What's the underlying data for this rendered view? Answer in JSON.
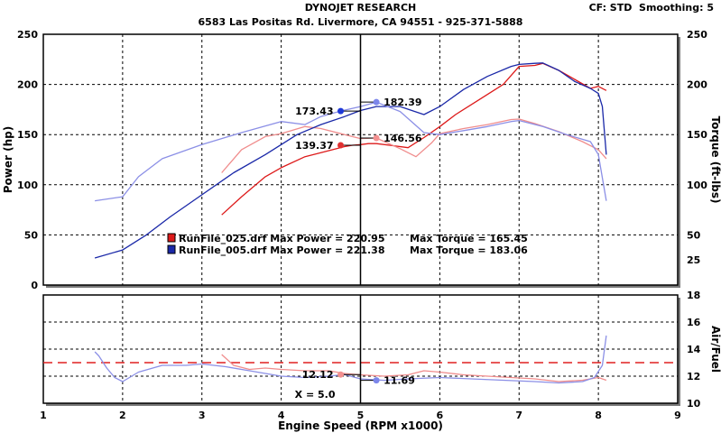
{
  "header": {
    "title": "DYNOJET RESEARCH",
    "address": "6583 Las Positas Rd. Livermore, CA 94551 - 925-371-5888",
    "cf_label": "CF: STD",
    "smoothing_label": "Smoothing: 5"
  },
  "colors": {
    "red_dark": "#dd1a1a",
    "red_light": "#f08c8c",
    "blue_dark": "#1a28a8",
    "blue_light": "#8b8fe6",
    "marker_red": "#e03030",
    "marker_red_light": "#f39090",
    "marker_blue": "#1f3ad8",
    "marker_blue_light": "#7c86ea",
    "afr_target": "#e02020"
  },
  "chart_data": [
    {
      "type": "line",
      "name": "power-torque",
      "xlabel": "Engine Speed (RPM x1000)",
      "ylabel": "Power (hp)",
      "ylabel_right": "Torque (ft-lbs)",
      "xlim": [
        1,
        9
      ],
      "ylim": [
        0,
        250
      ],
      "ylim_right": [
        0,
        250
      ],
      "x_ticks": [
        "1",
        "2",
        "3",
        "4",
        "5",
        "6",
        "7",
        "8",
        "9"
      ],
      "y_ticks": [
        "0",
        "50",
        "100",
        "150",
        "200",
        "250"
      ],
      "y_ticks_right": [
        "25",
        "50",
        "100",
        "150",
        "200",
        "250"
      ],
      "grid": true,
      "cursor_x": 5.0,
      "legend": [
        {
          "text": "RunFile_025.drf Max Power = 220.95",
          "torque_text": "Max Torque = 165.45",
          "color_key": "red_dark"
        },
        {
          "text": "RunFile_005.drf Max Power = 221.38",
          "torque_text": "Max Torque = 183.06",
          "color_key": "blue_dark"
        }
      ],
      "series": [
        {
          "role": "power",
          "color_key": "red_dark",
          "x": [
            3.25,
            3.5,
            3.8,
            4.0,
            4.3,
            4.5,
            4.7,
            4.8,
            4.9,
            5.0,
            5.1,
            5.2,
            5.4,
            5.6,
            5.8,
            6.0,
            6.2,
            6.5,
            6.8,
            7.0,
            7.2,
            7.3,
            7.5,
            7.7,
            7.9,
            8.0,
            8.1
          ],
          "y": [
            70,
            88,
            108,
            117,
            128,
            132,
            136,
            138,
            139.37,
            140,
            141,
            141,
            139,
            137,
            147,
            158,
            170,
            185,
            200,
            218,
            219,
            220.95,
            214,
            205,
            196,
            198,
            194
          ]
        },
        {
          "role": "torque",
          "color_key": "red_light",
          "x": [
            3.25,
            3.5,
            3.8,
            4.0,
            4.3,
            4.5,
            4.8,
            5.0,
            5.2,
            5.5,
            5.7,
            5.9,
            6.0,
            6.3,
            6.6,
            6.9,
            7.0,
            7.2,
            7.5,
            7.8,
            8.0,
            8.1
          ],
          "y": [
            112,
            135,
            148,
            151,
            158,
            156,
            150,
            146,
            146.56,
            136,
            128,
            142,
            151,
            156,
            160,
            165,
            165.45,
            161,
            153,
            143,
            135,
            126
          ]
        },
        {
          "role": "power",
          "color_key": "blue_dark",
          "x": [
            1.65,
            2.0,
            2.3,
            2.6,
            3.0,
            3.4,
            3.8,
            4.2,
            4.5,
            4.8,
            5.0,
            5.2,
            5.5,
            5.8,
            6.0,
            6.3,
            6.6,
            6.9,
            7.0,
            7.2,
            7.3,
            7.5,
            7.7,
            7.9,
            8.0,
            8.05,
            8.1
          ],
          "y": [
            27,
            35,
            50,
            68,
            90,
            112,
            130,
            150,
            160,
            168,
            174,
            178,
            178,
            170,
            178,
            195,
            208,
            218,
            220,
            221,
            221.38,
            214,
            203,
            196,
            191,
            178,
            130
          ]
        },
        {
          "role": "torque",
          "color_key": "blue_light",
          "x": [
            1.65,
            2.0,
            2.2,
            2.5,
            3.0,
            3.5,
            4.0,
            4.3,
            4.5,
            4.75,
            5.0,
            5.2,
            5.5,
            5.8,
            6.0,
            6.3,
            6.6,
            6.9,
            7.0,
            7.3,
            7.6,
            7.9,
            8.0,
            8.1
          ],
          "y": [
            84,
            88,
            108,
            126,
            140,
            152,
            163,
            160,
            168,
            173.43,
            178,
            182.39,
            173,
            152,
            150,
            154,
            158,
            163,
            164,
            158,
            150,
            143,
            130,
            84
          ]
        }
      ],
      "markers": [
        {
          "x": 4.75,
          "y": 173.43,
          "label": "173.43",
          "side": "left",
          "color_key": "marker_blue"
        },
        {
          "x": 5.2,
          "y": 182.39,
          "label": "182.39",
          "side": "right",
          "color_key": "marker_blue_light"
        },
        {
          "x": 4.75,
          "y": 139.37,
          "label": "139.37",
          "side": "left",
          "color_key": "marker_red"
        },
        {
          "x": 5.2,
          "y": 146.56,
          "label": "146.56",
          "side": "right",
          "color_key": "marker_red_light"
        }
      ]
    },
    {
      "type": "line",
      "name": "air-fuel",
      "xlabel": "Engine Speed (RPM x1000)",
      "ylabel_right": "Air/Fuel",
      "xlim": [
        1,
        9
      ],
      "ylim": [
        10,
        18
      ],
      "y_ticks_right": [
        "10",
        "12",
        "14",
        "16",
        "18"
      ],
      "target_afr": 13.0,
      "grid": true,
      "cursor_x": 5.0,
      "cursor_label": "X = 5.0",
      "series": [
        {
          "color_key": "red_light",
          "x": [
            3.25,
            3.4,
            3.6,
            3.8,
            4.0,
            4.3,
            4.6,
            4.8,
            5.0,
            5.3,
            5.6,
            5.8,
            6.0,
            6.3,
            6.6,
            6.9,
            7.2,
            7.5,
            7.8,
            8.0,
            8.1
          ],
          "y": [
            13.6,
            12.8,
            12.5,
            12.6,
            12.5,
            12.4,
            12.4,
            12.2,
            12.1,
            12.0,
            12.1,
            12.4,
            12.3,
            12.1,
            12.0,
            11.9,
            11.8,
            11.6,
            11.7,
            11.9,
            11.7
          ]
        },
        {
          "color_key": "blue_light",
          "x": [
            1.65,
            1.7,
            1.8,
            1.9,
            2.0,
            2.2,
            2.5,
            2.8,
            3.0,
            3.3,
            3.6,
            4.0,
            4.3,
            4.6,
            4.8,
            5.0,
            5.3,
            5.6,
            6.0,
            6.4,
            6.8,
            7.2,
            7.5,
            7.8,
            7.95,
            8.05,
            8.1
          ],
          "y": [
            13.8,
            13.5,
            12.6,
            11.9,
            11.6,
            12.3,
            12.8,
            12.8,
            12.9,
            12.7,
            12.4,
            12.0,
            11.9,
            12.0,
            12.12,
            11.8,
            11.69,
            11.8,
            11.9,
            11.8,
            11.7,
            11.6,
            11.5,
            11.6,
            11.9,
            12.8,
            15.0
          ]
        }
      ],
      "markers": [
        {
          "x": 4.75,
          "y": 12.12,
          "label": "12.12",
          "side": "left",
          "color_key": "marker_red_light"
        },
        {
          "x": 5.2,
          "y": 11.69,
          "label": "11.69",
          "side": "right",
          "color_key": "marker_blue_light"
        }
      ]
    }
  ]
}
